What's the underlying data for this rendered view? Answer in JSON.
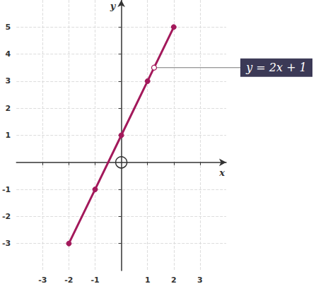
{
  "chart_data": {
    "type": "line",
    "x": [
      -2,
      -1,
      0,
      1,
      2
    ],
    "values": [
      -3,
      -1,
      1,
      3,
      5
    ],
    "color": "#a3195b",
    "marker": "circle",
    "xlim": [
      -4,
      4
    ],
    "ylim": [
      -4,
      6
    ],
    "xticks": [
      -3,
      -2,
      -1,
      1,
      2,
      3
    ],
    "yticks": [
      -3,
      -2,
      -1,
      1,
      2,
      3,
      4,
      5
    ],
    "x_label": "x",
    "y_label": "y",
    "grid": true,
    "annotation": {
      "text": "y = 2x + 1",
      "x": 1.25,
      "y": 3.5
    }
  }
}
